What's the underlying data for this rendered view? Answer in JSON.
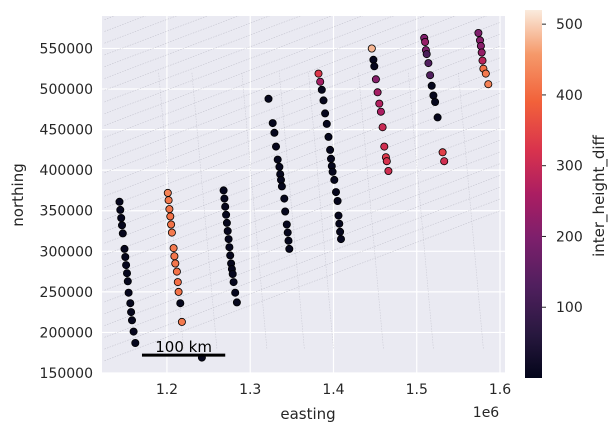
{
  "chart_data": {
    "type": "scatter",
    "xlabel": "easting",
    "ylabel": "northing",
    "x_offset_label": "1e6",
    "xlim": [
      1.122,
      1.606
    ],
    "ylim": [
      150000,
      590000
    ],
    "x_ticks": [
      1.2,
      1.3,
      1.4,
      1.5,
      1.6
    ],
    "x_tick_labels": [
      "1.2",
      "1.3",
      "1.4",
      "1.5",
      "1.6"
    ],
    "y_ticks": [
      150000,
      200000,
      250000,
      300000,
      350000,
      400000,
      450000,
      500000,
      550000
    ],
    "y_tick_labels": [
      "150000",
      "200000",
      "250000",
      "300000",
      "350000",
      "400000",
      "450000",
      "500000",
      "550000"
    ],
    "grid": true,
    "colorbar": {
      "label": "inter_height_diff",
      "range": [
        0,
        520
      ],
      "ticks": [
        100,
        200,
        300,
        400,
        500
      ],
      "tick_labels": [
        "100",
        "200",
        "300",
        "400",
        "500"
      ],
      "colormap": "rocket"
    },
    "scalebar": {
      "label": "100 km",
      "x_start": 1.17,
      "x_end": 1.27,
      "y": 172000
    },
    "background_colors": {
      "axes": "#eaeaf2",
      "grid": "#ffffff",
      "marker_edge": "#000000",
      "trackline": "#b8b8c4"
    },
    "series": [
      {
        "points": [
          [
            1.143,
            361000,
            5
          ],
          [
            1.144,
            351000,
            5
          ],
          [
            1.145,
            341000,
            5
          ],
          [
            1.146,
            332000,
            5
          ],
          [
            1.147,
            322000,
            5
          ],
          [
            1.149,
            303000,
            5
          ],
          [
            1.15,
            293000,
            5
          ],
          [
            1.151,
            283000,
            5
          ],
          [
            1.152,
            273000,
            5
          ],
          [
            1.153,
            263000,
            5
          ],
          [
            1.154,
            249000,
            5
          ],
          [
            1.156,
            236000,
            5
          ],
          [
            1.157,
            225000,
            5
          ],
          [
            1.158,
            215000,
            5
          ],
          [
            1.16,
            201000,
            5
          ],
          [
            1.162,
            187000,
            5
          ]
        ]
      },
      {
        "points": [
          [
            1.201,
            372000,
            430
          ],
          [
            1.202,
            363000,
            420
          ],
          [
            1.203,
            352000,
            415
          ],
          [
            1.204,
            343000,
            410
          ],
          [
            1.205,
            333000,
            410
          ],
          [
            1.206,
            323000,
            420
          ],
          [
            1.208,
            304000,
            420
          ],
          [
            1.209,
            294000,
            415
          ],
          [
            1.21,
            285000,
            415
          ],
          [
            1.212,
            275000,
            410
          ],
          [
            1.213,
            262000,
            405
          ],
          [
            1.214,
            250000,
            410
          ],
          [
            1.216,
            236000,
            5
          ],
          [
            1.218,
            213000,
            420
          ]
        ]
      },
      {
        "points": [
          [
            1.242,
            169000,
            5
          ],
          [
            1.268,
            375000,
            5
          ],
          [
            1.269,
            365000,
            5
          ],
          [
            1.27,
            355000,
            5
          ],
          [
            1.271,
            345000,
            5
          ],
          [
            1.272,
            335000,
            5
          ],
          [
            1.273,
            325000,
            5
          ],
          [
            1.274,
            315000,
            5
          ],
          [
            1.275,
            305000,
            5
          ],
          [
            1.276,
            295000,
            5
          ],
          [
            1.277,
            285000,
            5
          ],
          [
            1.278,
            278000,
            5
          ],
          [
            1.279,
            272000,
            5
          ],
          [
            1.28,
            262000,
            5
          ],
          [
            1.282,
            249000,
            5
          ],
          [
            1.284,
            237000,
            5
          ]
        ]
      },
      {
        "points": [
          [
            1.322,
            488000,
            5
          ],
          [
            1.327,
            458000,
            5
          ],
          [
            1.329,
            446000,
            5
          ],
          [
            1.331,
            429000,
            5
          ],
          [
            1.333,
            413000,
            5
          ],
          [
            1.335,
            404000,
            5
          ],
          [
            1.336,
            395000,
            5
          ],
          [
            1.337,
            388000,
            5
          ],
          [
            1.338,
            380000,
            5
          ],
          [
            1.341,
            365000,
            5
          ],
          [
            1.342,
            349000,
            5
          ],
          [
            1.344,
            333000,
            5
          ],
          [
            1.345,
            323000,
            5
          ],
          [
            1.346,
            313000,
            5
          ],
          [
            1.347,
            303000,
            5
          ]
        ]
      },
      {
        "points": [
          [
            1.382,
            519000,
            330
          ],
          [
            1.384,
            509000,
            250
          ],
          [
            1.386,
            499000,
            5
          ],
          [
            1.388,
            486000,
            5
          ],
          [
            1.39,
            470000,
            5
          ],
          [
            1.392,
            457000,
            5
          ],
          [
            1.394,
            441000,
            5
          ],
          [
            1.396,
            425000,
            5
          ],
          [
            1.397,
            414000,
            5
          ],
          [
            1.398,
            405000,
            5
          ],
          [
            1.399,
            398000,
            5
          ],
          [
            1.401,
            388000,
            5
          ],
          [
            1.403,
            373000,
            5
          ],
          [
            1.405,
            362000,
            5
          ],
          [
            1.406,
            344000,
            5
          ],
          [
            1.407,
            334000,
            5
          ],
          [
            1.408,
            324000,
            5
          ],
          [
            1.409,
            315000,
            5
          ]
        ]
      },
      {
        "points": [
          [
            1.446,
            550000,
            480
          ],
          [
            1.448,
            536000,
            5
          ],
          [
            1.449,
            528000,
            5
          ],
          [
            1.451,
            512000,
            210
          ],
          [
            1.453,
            496000,
            250
          ],
          [
            1.455,
            482000,
            270
          ],
          [
            1.457,
            472000,
            260
          ],
          [
            1.459,
            453000,
            300
          ],
          [
            1.461,
            429000,
            310
          ],
          [
            1.463,
            416000,
            330
          ],
          [
            1.464,
            411000,
            320
          ],
          [
            1.466,
            399000,
            310
          ]
        ]
      },
      {
        "points": [
          [
            1.509,
            563000,
            200
          ],
          [
            1.51,
            558000,
            230
          ],
          [
            1.511,
            548000,
            200
          ],
          [
            1.512,
            543000,
            120
          ],
          [
            1.514,
            532000,
            130
          ],
          [
            1.516,
            517000,
            130
          ],
          [
            1.518,
            504000,
            5
          ],
          [
            1.52,
            492000,
            5
          ],
          [
            1.522,
            484000,
            5
          ],
          [
            1.525,
            465000,
            5
          ],
          [
            1.531,
            422000,
            340
          ],
          [
            1.533,
            411000,
            310
          ]
        ]
      },
      {
        "points": [
          [
            1.574,
            569000,
            200
          ],
          [
            1.576,
            560000,
            210
          ],
          [
            1.577,
            553000,
            210
          ],
          [
            1.578,
            545000,
            230
          ],
          [
            1.579,
            535000,
            280
          ],
          [
            1.58,
            525000,
            410
          ],
          [
            1.583,
            519000,
            420
          ],
          [
            1.586,
            506000,
            430
          ]
        ]
      }
    ]
  }
}
